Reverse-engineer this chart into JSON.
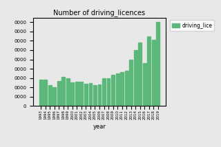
{
  "title": "Number of driving_licences",
  "xlabel": "year",
  "legend_label": "driving_lice",
  "bar_color": "#5cb87a",
  "years": [
    1993,
    1994,
    1995,
    1996,
    1997,
    1998,
    1999,
    2000,
    2001,
    2002,
    2003,
    2004,
    2005,
    2006,
    2007,
    2008,
    2009,
    2010,
    2011,
    2012,
    2013,
    2014,
    2015,
    2016,
    2017,
    2018,
    2019
  ],
  "values": [
    28000,
    28500,
    22000,
    20000,
    27000,
    31000,
    30000,
    25000,
    26000,
    26000,
    24000,
    24500,
    22500,
    23000,
    30000,
    30000,
    33000,
    35000,
    36000,
    38000,
    50000,
    60000,
    68000,
    46000,
    75000,
    71000,
    90000
  ],
  "ylim": [
    0,
    95000
  ],
  "bg_color": "#e8e8e8",
  "figsize": [
    3.2,
    2.14
  ],
  "dpi": 100
}
